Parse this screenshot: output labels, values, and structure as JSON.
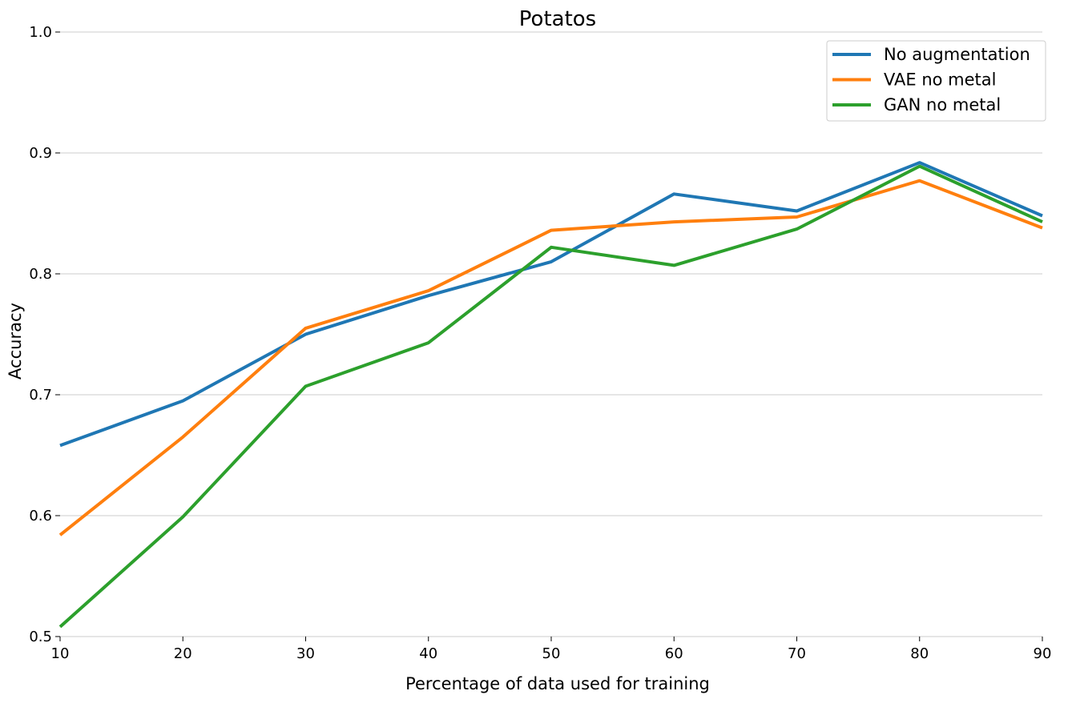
{
  "chart_data": {
    "type": "line",
    "title": "Potatos",
    "xlabel": "Percentage of data used for training",
    "ylabel": "Accuracy",
    "x": [
      10,
      20,
      30,
      40,
      50,
      60,
      70,
      80,
      90
    ],
    "xlim": [
      10,
      90
    ],
    "ylim": [
      0.5,
      1.0
    ],
    "x_ticks": [
      "10",
      "20",
      "30",
      "40",
      "50",
      "60",
      "70",
      "80",
      "90"
    ],
    "y_ticks": [
      "0.5",
      "0.6",
      "0.7",
      "0.8",
      "0.9",
      "1.0"
    ],
    "grid": "horizontal",
    "legend_position": "top-right",
    "series": [
      {
        "name": "No augmentation",
        "color": "#1f77b4",
        "values": [
          0.658,
          0.695,
          0.75,
          0.782,
          0.81,
          0.866,
          0.852,
          0.892,
          0.848
        ]
      },
      {
        "name": "VAE no metal",
        "color": "#ff7f0e",
        "values": [
          0.584,
          0.665,
          0.755,
          0.786,
          0.836,
          0.843,
          0.847,
          0.877,
          0.838
        ]
      },
      {
        "name": "GAN no metal",
        "color": "#2ca02c",
        "values": [
          0.508,
          0.599,
          0.707,
          0.743,
          0.822,
          0.807,
          0.837,
          0.889,
          0.843
        ]
      }
    ]
  }
}
